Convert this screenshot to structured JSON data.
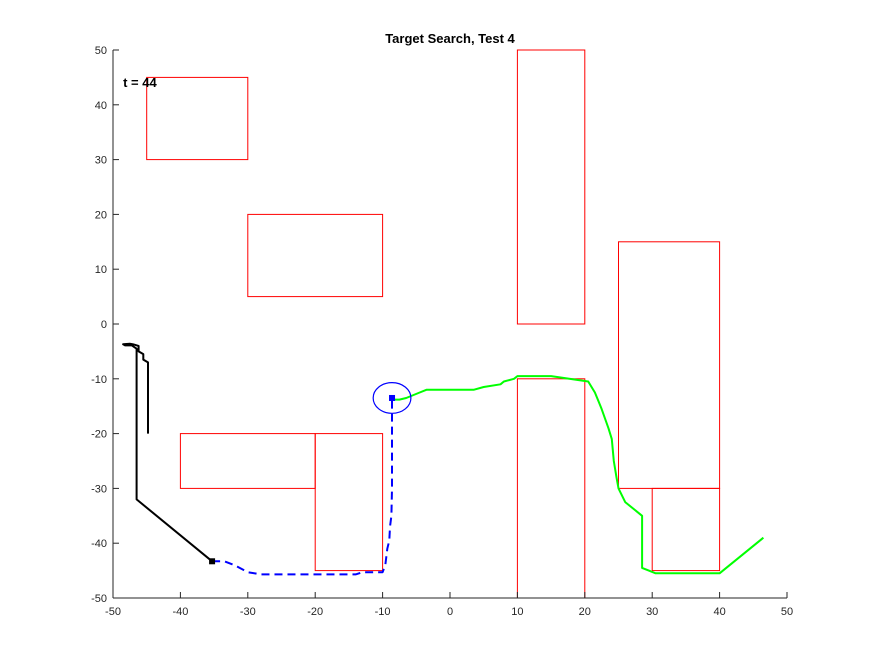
{
  "chart_data": {
    "type": "line",
    "title": "Target Search, Test 4",
    "xlabel": "",
    "ylabel": "",
    "xlim": [
      -50,
      50
    ],
    "ylim": [
      -50,
      50
    ],
    "xticks": [
      -50,
      -40,
      -30,
      -20,
      -10,
      0,
      10,
      20,
      30,
      40,
      50
    ],
    "yticks": [
      -50,
      -40,
      -30,
      -20,
      -10,
      0,
      10,
      20,
      30,
      40,
      50
    ],
    "grid": false,
    "legend": "none",
    "annotation": {
      "text": "t = 44",
      "x": -48.5,
      "y": 44
    },
    "obstacles": [
      {
        "x": [
          -45,
          -30
        ],
        "y": [
          30,
          45
        ]
      },
      {
        "x": [
          -30,
          -10
        ],
        "y": [
          5,
          20
        ]
      },
      {
        "x": [
          10,
          20
        ],
        "y": [
          0,
          50
        ]
      },
      {
        "x": [
          25,
          40
        ],
        "y": [
          -30,
          15
        ]
      },
      {
        "x": [
          -40,
          -20
        ],
        "y": [
          -30,
          -20
        ]
      },
      {
        "x": [
          -20,
          -10
        ],
        "y": [
          -45,
          -20
        ]
      },
      {
        "x": [
          10,
          20
        ],
        "y": [
          -50,
          -10
        ]
      },
      {
        "x": [
          30,
          40
        ],
        "y": [
          -45,
          -30
        ]
      }
    ],
    "obstacle_color": "#ff0000",
    "series": [
      {
        "color": "#000000",
        "style": "solid",
        "x": [
          -44.8,
          -44.8,
          -45.5,
          -45.5,
          -46.2,
          -46.2,
          -47,
          -47.5,
          -48.5,
          -48.2,
          -47.2,
          -46.5,
          -46.5,
          -46.5,
          -35.3
        ],
        "y": [
          -20,
          -7,
          -6.5,
          -5.5,
          -5,
          -4,
          -3.7,
          -3.6,
          -3.7,
          -3.9,
          -3.9,
          -4.5,
          -10,
          -32,
          -43.3
        ]
      },
      {
        "color": "#0000ff",
        "style": "dashed",
        "x": [
          -35.3,
          -33.5,
          -32,
          -30,
          -28,
          -20,
          -14,
          -13,
          -12,
          -10,
          -9.6,
          -9.3,
          -9.0,
          -8.9,
          -8.7,
          -8.6,
          -8.6
        ],
        "y": [
          -43.3,
          -43.3,
          -44,
          -45.3,
          -45.7,
          -45.7,
          -45.7,
          -45.3,
          -45.3,
          -45.3,
          -44,
          -41,
          -39.5,
          -37,
          -35,
          -30,
          -14
        ]
      },
      {
        "color": "#00ff00",
        "style": "solid",
        "x": [
          46.5,
          40,
          37,
          30.5,
          29.5,
          28.5,
          28.5,
          26,
          25,
          24.7,
          24.3,
          24,
          23.5,
          22.5,
          22,
          21.5,
          20.5,
          15,
          10,
          9.5,
          8,
          7.5,
          5,
          3.5,
          -3.5,
          -4.5,
          -6.5,
          -7.5,
          -8.5
        ],
        "y": [
          -39,
          -45.5,
          -45.5,
          -45.5,
          -45,
          -44.5,
          -35,
          -32.5,
          -30,
          -28,
          -25,
          -21,
          -19,
          -15.5,
          -14,
          -12.5,
          -10.5,
          -9.5,
          -9.5,
          -10,
          -10.5,
          -11,
          -11.5,
          -12,
          -12,
          -12.5,
          -13.5,
          -13.8,
          -13.8
        ]
      }
    ],
    "target_marker": {
      "x": -8.6,
      "y": -13.5,
      "radius_x": 2.8,
      "radius_y": 2.8,
      "color": "#0000ff"
    },
    "start_marker": {
      "x": -35.3,
      "y": -43.3,
      "color": "#000000"
    }
  }
}
